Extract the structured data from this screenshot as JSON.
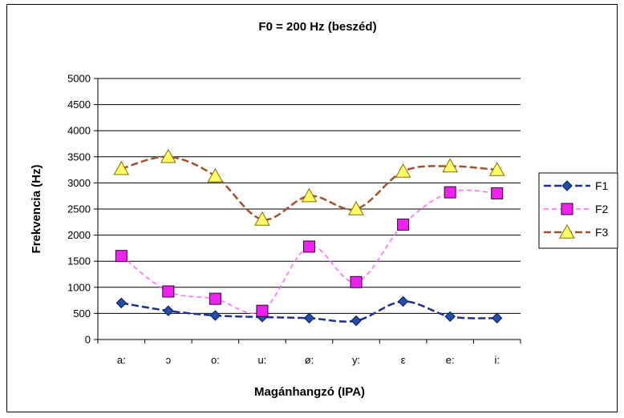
{
  "chart_data": {
    "type": "line",
    "title": "F0 = 200 Hz (beszéd)",
    "xlabel": "Magánhangzó (IPA)",
    "ylabel": "Frekvencia (Hz)",
    "categories": [
      "a:",
      "ɔ",
      "o:",
      "u:",
      "ø:",
      "y:",
      "ε",
      "e:",
      "i:"
    ],
    "ylim": [
      0,
      5000
    ],
    "yticks": [
      0,
      500,
      1000,
      1500,
      2000,
      2500,
      3000,
      3500,
      4000,
      4500,
      5000
    ],
    "grid": true,
    "legend_position": "right",
    "series": [
      {
        "name": "F1",
        "marker": "diamond",
        "color": "#1f2f8a",
        "marker_color": "#1f4fa8",
        "dash": "long",
        "values": [
          700,
          550,
          460,
          430,
          410,
          360,
          730,
          440,
          410
        ]
      },
      {
        "name": "F2",
        "marker": "square",
        "color": "#ff66ff",
        "marker_color": "#ee22ee",
        "dash": "short",
        "values": [
          1600,
          920,
          780,
          550,
          1780,
          1100,
          2200,
          2820,
          2800
        ]
      },
      {
        "name": "F3",
        "marker": "triangle",
        "color": "#a0522d",
        "marker_color": "#ffff66",
        "dash": "long",
        "values": [
          3270,
          3500,
          3130,
          2300,
          2750,
          2500,
          3220,
          3320,
          3250
        ]
      }
    ]
  }
}
